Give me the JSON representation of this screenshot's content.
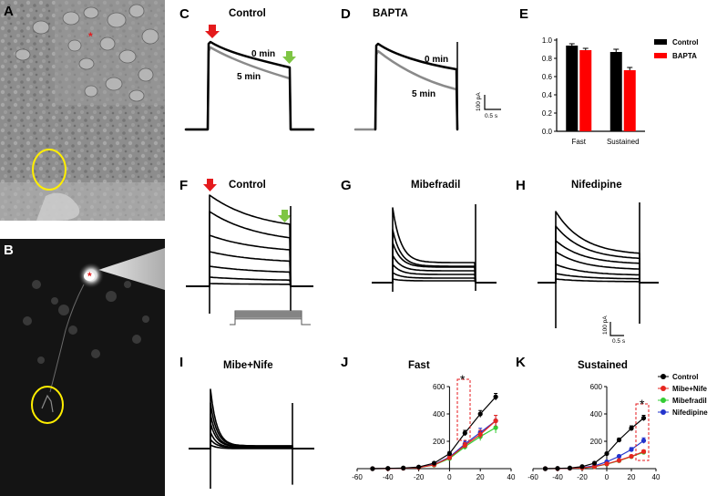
{
  "panels": {
    "A": "A",
    "B": "B",
    "C": "C",
    "D": "D",
    "E": "E",
    "F": "F",
    "G": "G",
    "H": "H",
    "I": "I",
    "J": "J",
    "K": "K"
  },
  "titles": {
    "C": "Control",
    "D": "BAPTA",
    "F": "Control",
    "G": "Mibefradil",
    "H": "Nifedipine",
    "I": "Mibe+Nife",
    "J": "Fast",
    "K": "Sustained"
  },
  "annotations": {
    "c_0min": "0 min",
    "c_5min": "5 min",
    "d_0min": "0 min",
    "d_5min": "5 min",
    "scale1_y": "100 pA",
    "scale1_x": "0.5 s",
    "scale2_y": "100 pA",
    "scale2_x": "0.5 s",
    "star_j": "*",
    "star_k": "*"
  },
  "colors": {
    "control": "#000000",
    "bapta": "#ff0000",
    "mibe_nife": "#e6261f",
    "mibefradil": "#33cc33",
    "nifedipine": "#2233cc",
    "gray_trace": "#8a8a8a",
    "red_arrow": "#e41a1c",
    "green_arrow": "#7ec544",
    "circle": "#ffee00"
  },
  "chart_data": [
    {
      "panel": "E",
      "type": "bar",
      "categories": [
        "Fast",
        "Sustained"
      ],
      "series": [
        {
          "name": "Control",
          "values": [
            0.94,
            0.87
          ],
          "errors": [
            0.02,
            0.03
          ]
        },
        {
          "name": "BAPTA",
          "values": [
            0.89,
            0.67
          ],
          "errors": [
            0.02,
            0.03
          ]
        }
      ],
      "ylim": [
        0,
        1.0
      ],
      "yticks": [
        "0.0",
        "0.2",
        "0.4",
        "0.6",
        "0.8",
        "1.0"
      ],
      "legend_position": "right"
    },
    {
      "panel": "J",
      "type": "line",
      "title": "Fast",
      "x": [
        -50,
        -40,
        -30,
        -20,
        -10,
        0,
        10,
        20,
        30
      ],
      "series": [
        {
          "name": "Control",
          "values": [
            0,
            2,
            5,
            12,
            40,
            110,
            260,
            400,
            525
          ],
          "errors": [
            0,
            1,
            2,
            4,
            8,
            15,
            20,
            25,
            25
          ]
        },
        {
          "name": "Mibe+Nife",
          "values": [
            0,
            1,
            3,
            8,
            28,
            80,
            170,
            250,
            350
          ],
          "errors": [
            0,
            1,
            2,
            3,
            6,
            12,
            20,
            30,
            40
          ]
        },
        {
          "name": "Mibefradil",
          "values": [
            0,
            1,
            3,
            8,
            26,
            75,
            160,
            235,
            300
          ],
          "errors": [
            0,
            1,
            2,
            3,
            6,
            12,
            20,
            30,
            40
          ]
        },
        {
          "name": "Nifedipine",
          "values": [
            0,
            1,
            3,
            9,
            30,
            85,
            180,
            265,
            350
          ],
          "errors": [
            0,
            1,
            2,
            3,
            6,
            12,
            20,
            30,
            40
          ]
        }
      ],
      "xlim": [
        -60,
        40
      ],
      "ylim": [
        0,
        600
      ],
      "xticks": [
        "-60",
        "-40",
        "-20",
        "0",
        "20",
        "40"
      ],
      "yticks": [
        "200",
        "400",
        "600"
      ]
    },
    {
      "panel": "K",
      "type": "line",
      "title": "Sustained",
      "x": [
        -50,
        -40,
        -30,
        -20,
        -10,
        0,
        10,
        20,
        30
      ],
      "series": [
        {
          "name": "Control",
          "values": [
            0,
            2,
            5,
            15,
            40,
            110,
            210,
            295,
            370
          ],
          "errors": [
            0,
            1,
            2,
            3,
            6,
            10,
            14,
            18,
            20
          ]
        },
        {
          "name": "Mibe+Nife",
          "values": [
            0,
            1,
            3,
            6,
            15,
            35,
            60,
            90,
            125
          ],
          "errors": [
            0,
            1,
            1,
            2,
            4,
            6,
            8,
            10,
            12
          ]
        },
        {
          "name": "Mibefradil",
          "values": [
            0,
            1,
            3,
            6,
            14,
            33,
            58,
            88,
            120
          ],
          "errors": [
            0,
            1,
            1,
            2,
            4,
            6,
            8,
            10,
            12
          ]
        },
        {
          "name": "Nifedipine",
          "values": [
            0,
            1,
            3,
            8,
            20,
            50,
            90,
            140,
            205
          ],
          "errors": [
            0,
            1,
            1,
            2,
            4,
            6,
            10,
            14,
            20
          ]
        }
      ],
      "xlim": [
        -60,
        40
      ],
      "ylim": [
        0,
        600
      ],
      "xticks": [
        "-60",
        "-40",
        "-20",
        "0",
        "20",
        "40"
      ],
      "yticks": [
        "200",
        "400",
        "600"
      ],
      "legend_position": "right"
    }
  ]
}
